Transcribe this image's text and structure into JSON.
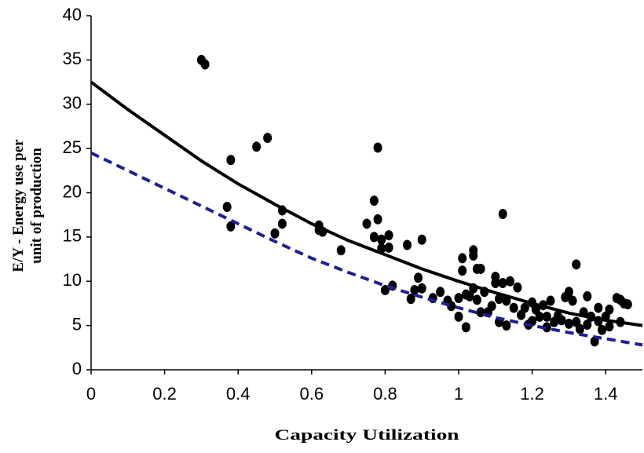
{
  "chart_data": {
    "type": "scatter",
    "xlabel": "Capacity Utilization",
    "ylabel": [
      "E/Y -  Energy use per",
      "unit of production"
    ],
    "xlim": [
      0,
      1.5
    ],
    "ylim": [
      0,
      40
    ],
    "xticks": [
      0,
      0.2,
      0.4,
      0.6,
      0.8,
      1,
      1.2,
      1.4
    ],
    "yticks": [
      0,
      5,
      10,
      15,
      20,
      25,
      30,
      35,
      40
    ],
    "grid": false,
    "series": [
      {
        "style": "dots",
        "color": "#000000",
        "x": [
          0.3,
          0.31,
          0.37,
          0.38,
          0.38,
          0.45,
          0.48,
          0.5,
          0.52,
          0.52,
          0.62,
          0.62,
          0.63,
          0.68,
          0.75,
          0.77,
          0.77,
          0.78,
          0.78,
          0.79,
          0.79,
          0.8,
          0.81,
          0.81,
          0.82,
          0.86,
          0.87,
          0.88,
          0.89,
          0.9,
          0.9,
          0.93,
          0.95,
          0.97,
          0.98,
          1.0,
          1.0,
          1.01,
          1.01,
          1.02,
          1.02,
          1.03,
          1.04,
          1.04,
          1.04,
          1.05,
          1.05,
          1.06,
          1.06,
          1.07,
          1.08,
          1.09,
          1.1,
          1.1,
          1.11,
          1.11,
          1.12,
          1.12,
          1.13,
          1.13,
          1.14,
          1.15,
          1.16,
          1.17,
          1.18,
          1.19,
          1.2,
          1.2,
          1.21,
          1.22,
          1.23,
          1.24,
          1.24,
          1.25,
          1.26,
          1.27,
          1.28,
          1.29,
          1.3,
          1.3,
          1.31,
          1.32,
          1.32,
          1.33,
          1.34,
          1.35,
          1.35,
          1.36,
          1.37,
          1.38,
          1.38,
          1.39,
          1.4,
          1.41,
          1.41,
          1.43,
          1.44,
          1.44,
          1.45,
          1.46
        ],
        "values": [
          35,
          34.5,
          18.4,
          16.2,
          23.7,
          25.2,
          26.2,
          15.4,
          16.5,
          18,
          16.3,
          15.8,
          15.6,
          13.5,
          16.5,
          19.1,
          15,
          25.1,
          17,
          13.7,
          14.7,
          9,
          15.2,
          13.8,
          9.5,
          14.1,
          8,
          9,
          10.4,
          14.7,
          9.2,
          8.1,
          8.8,
          7.8,
          7.2,
          6,
          8.1,
          12.6,
          11.2,
          8.5,
          4.8,
          8.3,
          13.5,
          12.9,
          9.2,
          11.4,
          7.9,
          6.5,
          11.4,
          8.8,
          6.5,
          7.2,
          10.5,
          9.8,
          8,
          5.4,
          17.6,
          9.8,
          5,
          7.8,
          10,
          7,
          9.3,
          6.2,
          7,
          5.1,
          7.6,
          5.5,
          6.8,
          6,
          7.3,
          6,
          4.8,
          7.8,
          5.4,
          6.1,
          5.6,
          8.2,
          8.8,
          5.2,
          7.8,
          11.9,
          5.4,
          4.6,
          6.5,
          8.3,
          5.1,
          6,
          3.2,
          5.5,
          7,
          4.5,
          6,
          6.8,
          4.9,
          8.1,
          7.9,
          5.4,
          7.5,
          7.4
        ]
      },
      {
        "style": "solid",
        "color": "#000000",
        "x": [
          0,
          0.1,
          0.2,
          0.3,
          0.4,
          0.5,
          0.6,
          0.7,
          0.8,
          0.9,
          1.0,
          1.1,
          1.2,
          1.3,
          1.4,
          1.5
        ],
        "values": [
          32.5,
          29.4,
          26.5,
          23.6,
          21,
          18.7,
          16.5,
          14.6,
          13,
          11.4,
          10,
          8.7,
          7.5,
          6.4,
          5.6,
          5
        ]
      },
      {
        "style": "dashed",
        "color": "#1f1f8f",
        "x": [
          0,
          0.1,
          0.2,
          0.3,
          0.4,
          0.5,
          0.6,
          0.7,
          0.8,
          0.9,
          1.0,
          1.1,
          1.2,
          1.3,
          1.4,
          1.5
        ],
        "values": [
          24.5,
          22.5,
          20.5,
          18.5,
          16.5,
          14.5,
          12.6,
          11,
          9.5,
          8.2,
          7,
          5.9,
          5,
          4.2,
          3.5,
          2.8
        ]
      }
    ]
  }
}
